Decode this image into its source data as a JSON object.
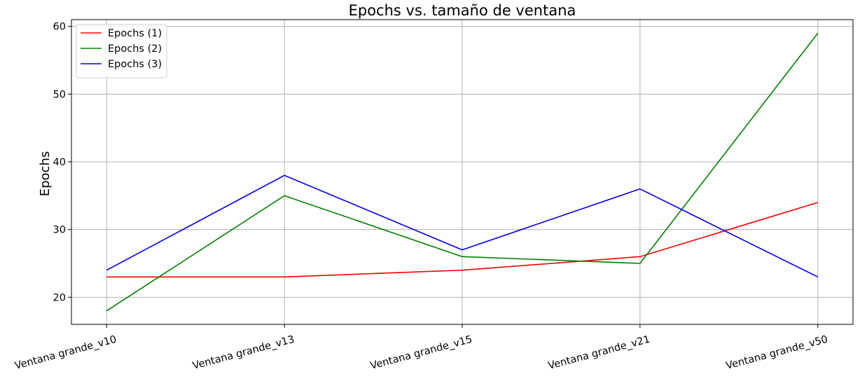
{
  "chart_data": {
    "type": "line",
    "title": "Epochs vs. tamaño de ventana",
    "xlabel": "",
    "ylabel": "Epochs",
    "categories": [
      "Ventana grande_v10",
      "Ventana grande_v13",
      "Ventana grande_v15",
      "Ventana grande_v21",
      "Ventana grande_v50"
    ],
    "ylim": [
      16,
      61
    ],
    "yticks": [
      20,
      30,
      40,
      50,
      60
    ],
    "grid": true,
    "legend_position": "top-left",
    "series": [
      {
        "name": "Epochs (1)",
        "color": "#ff0000",
        "values": [
          23,
          23,
          24,
          26,
          34
        ]
      },
      {
        "name": "Epochs (2)",
        "color": "#008000",
        "values": [
          18,
          35,
          26,
          25,
          59
        ]
      },
      {
        "name": "Epochs (3)",
        "color": "#0000ff",
        "values": [
          24,
          38,
          27,
          36,
          23
        ]
      }
    ]
  }
}
